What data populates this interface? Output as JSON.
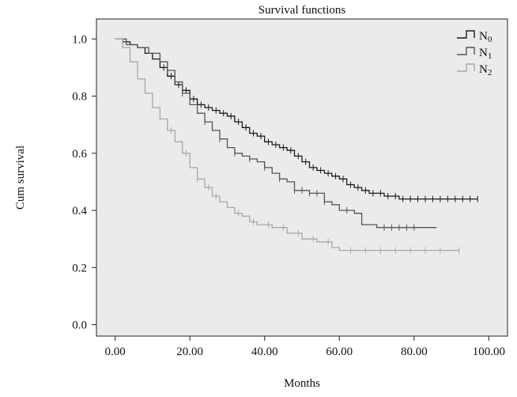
{
  "chart_data": {
    "type": "line",
    "title": "Survival functions",
    "xlabel": "Months",
    "ylabel": "Cum survival",
    "xlim": [
      -5,
      105
    ],
    "ylim": [
      -0.04,
      1.07
    ],
    "x_ticks": [
      0,
      20,
      40,
      60,
      80,
      100
    ],
    "x_tick_labels": [
      "0.00",
      "20.00",
      "40.00",
      "60.00",
      "80.00",
      "100.00"
    ],
    "y_ticks": [
      0.0,
      0.2,
      0.4,
      0.6,
      0.8,
      1.0
    ],
    "y_tick_labels": [
      "0.0",
      "0.2",
      "0.4",
      "0.6",
      "0.8",
      "1.0"
    ],
    "grid": false,
    "plot_background": "#ebebeb",
    "legend": "top-right",
    "series": [
      {
        "name": "N0",
        "color": "#1a1a1a",
        "step": true,
        "points": [
          [
            0,
            1.0
          ],
          [
            2,
            0.99
          ],
          [
            4,
            0.98
          ],
          [
            6,
            0.97
          ],
          [
            8,
            0.95
          ],
          [
            10,
            0.93
          ],
          [
            12,
            0.9
          ],
          [
            14,
            0.87
          ],
          [
            16,
            0.84
          ],
          [
            18,
            0.82
          ],
          [
            20,
            0.79
          ],
          [
            22,
            0.77
          ],
          [
            24,
            0.76
          ],
          [
            26,
            0.75
          ],
          [
            28,
            0.74
          ],
          [
            30,
            0.73
          ],
          [
            32,
            0.71
          ],
          [
            34,
            0.69
          ],
          [
            36,
            0.67
          ],
          [
            38,
            0.66
          ],
          [
            40,
            0.64
          ],
          [
            42,
            0.63
          ],
          [
            44,
            0.62
          ],
          [
            46,
            0.61
          ],
          [
            48,
            0.59
          ],
          [
            50,
            0.57
          ],
          [
            52,
            0.55
          ],
          [
            54,
            0.54
          ],
          [
            56,
            0.53
          ],
          [
            58,
            0.52
          ],
          [
            60,
            0.51
          ],
          [
            62,
            0.49
          ],
          [
            64,
            0.48
          ],
          [
            66,
            0.47
          ],
          [
            68,
            0.46
          ],
          [
            70,
            0.46
          ],
          [
            72,
            0.45
          ],
          [
            74,
            0.45
          ],
          [
            76,
            0.44
          ],
          [
            78,
            0.44
          ],
          [
            80,
            0.44
          ],
          [
            97,
            0.44
          ]
        ],
        "censor_x": [
          13,
          15,
          17,
          19,
          21,
          23,
          25,
          27,
          29,
          31,
          33,
          35,
          37,
          39,
          41,
          43,
          45,
          47,
          49,
          51,
          53,
          55,
          57,
          59,
          61,
          63,
          65,
          67,
          69,
          71,
          73,
          75,
          77,
          79,
          81,
          83,
          85,
          87,
          89,
          91,
          93,
          95,
          97
        ]
      },
      {
        "name": "N1",
        "color": "#555555",
        "step": true,
        "points": [
          [
            0,
            1.0
          ],
          [
            3,
            0.98
          ],
          [
            6,
            0.97
          ],
          [
            9,
            0.95
          ],
          [
            12,
            0.92
          ],
          [
            14,
            0.89
          ],
          [
            16,
            0.85
          ],
          [
            18,
            0.81
          ],
          [
            20,
            0.77
          ],
          [
            22,
            0.74
          ],
          [
            24,
            0.71
          ],
          [
            26,
            0.68
          ],
          [
            28,
            0.65
          ],
          [
            30,
            0.62
          ],
          [
            32,
            0.6
          ],
          [
            34,
            0.59
          ],
          [
            36,
            0.58
          ],
          [
            38,
            0.57
          ],
          [
            40,
            0.55
          ],
          [
            42,
            0.53
          ],
          [
            44,
            0.51
          ],
          [
            46,
            0.5
          ],
          [
            48,
            0.47
          ],
          [
            52,
            0.46
          ],
          [
            54,
            0.46
          ],
          [
            56,
            0.43
          ],
          [
            58,
            0.42
          ],
          [
            60,
            0.4
          ],
          [
            64,
            0.39
          ],
          [
            66,
            0.35
          ],
          [
            70,
            0.34
          ],
          [
            86,
            0.34
          ]
        ],
        "censor_x": [
          14,
          16,
          18,
          24,
          28,
          32,
          36,
          40,
          44,
          48,
          50,
          52,
          54,
          56,
          62,
          72,
          74,
          76,
          78,
          80
        ]
      },
      {
        "name": "N2",
        "color": "#a8a8a8",
        "step": true,
        "points": [
          [
            0,
            1.0
          ],
          [
            2,
            0.97
          ],
          [
            4,
            0.92
          ],
          [
            6,
            0.86
          ],
          [
            8,
            0.81
          ],
          [
            10,
            0.76
          ],
          [
            12,
            0.72
          ],
          [
            14,
            0.68
          ],
          [
            16,
            0.64
          ],
          [
            18,
            0.6
          ],
          [
            20,
            0.55
          ],
          [
            22,
            0.51
          ],
          [
            24,
            0.48
          ],
          [
            26,
            0.45
          ],
          [
            28,
            0.43
          ],
          [
            30,
            0.41
          ],
          [
            32,
            0.39
          ],
          [
            34,
            0.38
          ],
          [
            36,
            0.36
          ],
          [
            38,
            0.35
          ],
          [
            42,
            0.34
          ],
          [
            46,
            0.32
          ],
          [
            50,
            0.3
          ],
          [
            54,
            0.29
          ],
          [
            58,
            0.27
          ],
          [
            60,
            0.26
          ],
          [
            92,
            0.26
          ]
        ],
        "censor_x": [
          15,
          19,
          22,
          25,
          27,
          33,
          37,
          41,
          45,
          49,
          53,
          57,
          63,
          67,
          71,
          75,
          79,
          83,
          87,
          92
        ]
      }
    ]
  }
}
